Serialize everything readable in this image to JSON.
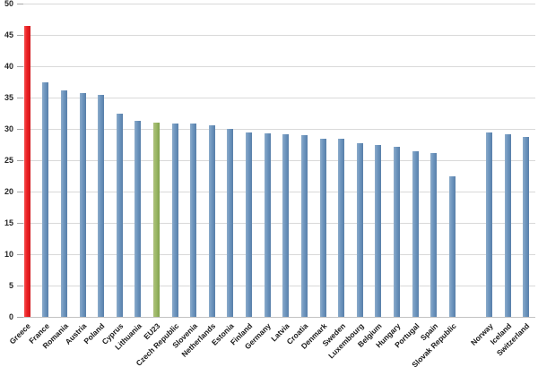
{
  "chart_data": {
    "type": "bar",
    "title": "",
    "xlabel": "",
    "ylabel": "",
    "grid": true,
    "legend": false,
    "ylim": [
      0,
      50
    ],
    "ystep": 5,
    "yticks": [
      0,
      5,
      10,
      15,
      20,
      25,
      30,
      35,
      40,
      45,
      50
    ],
    "categories": [
      "Greece",
      "France",
      "Romania",
      "Austria",
      "Poland",
      "Cyprus",
      "Lithuania",
      "EU23",
      "Czech Republic",
      "Slovenia",
      "Netherlands",
      "Estonia",
      "Finland",
      "Germany",
      "Latvia",
      "Croatia",
      "Denmark",
      "Sweden",
      "Luxembourg",
      "Belgium",
      "Hungary",
      "Portugal",
      "Spain",
      "Slovak Republic",
      "",
      "Norway",
      "Iceland",
      "Switzerland"
    ],
    "values": [
      46.5,
      37.4,
      36.2,
      35.7,
      35.5,
      32.5,
      31.3,
      31.0,
      30.9,
      30.8,
      30.6,
      30.0,
      29.5,
      29.3,
      29.2,
      29.0,
      28.5,
      28.4,
      27.7,
      27.5,
      27.1,
      26.5,
      26.1,
      22.5,
      null,
      29.4,
      29.2,
      28.7
    ],
    "bar_color_keys": [
      "red",
      "blue",
      "blue",
      "blue",
      "blue",
      "blue",
      "blue",
      "green",
      "blue",
      "blue",
      "blue",
      "blue",
      "blue",
      "blue",
      "blue",
      "blue",
      "blue",
      "blue",
      "blue",
      "blue",
      "blue",
      "blue",
      "blue",
      "blue",
      null,
      "blue",
      "blue",
      "blue"
    ],
    "colors": {
      "blue": "#6e96bf",
      "red": "#ed2024",
      "green": "#9cb966",
      "gridline": "#d9d9d9",
      "axis_baseline": "#c2c2c2",
      "tick": "#a6a6a6",
      "label_text": "#262626"
    }
  }
}
